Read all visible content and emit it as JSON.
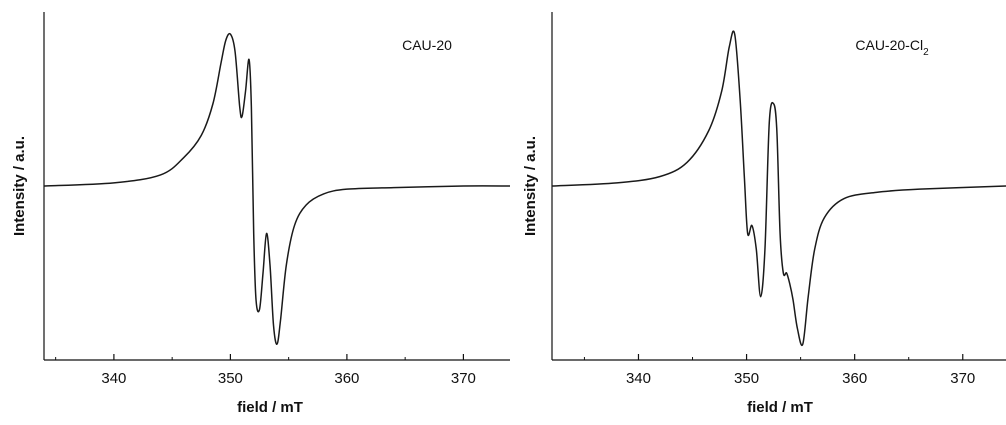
{
  "chart_data": [
    {
      "type": "line",
      "title": "",
      "panel_label": "CAU-20",
      "panel_label_sub": "",
      "xlabel": "field / mT",
      "ylabel": "Intensity / a.u.",
      "xlim": [
        334,
        374
      ],
      "ylim": [
        -1.1,
        1.1
      ],
      "x_ticks": [
        340,
        350,
        360,
        370
      ],
      "y_ticks_labeled": false,
      "grid": false,
      "legend": "none",
      "line_color": "#1a1a1a",
      "series": [
        {
          "x": [
            334,
            340,
            344,
            346,
            347.5,
            348.5,
            349.2,
            349.6,
            350.0,
            350.4,
            350.8,
            351.0,
            351.3,
            351.6,
            351.8,
            352.0,
            352.2,
            352.5,
            352.8,
            353.1,
            353.4,
            353.7,
            354.0,
            354.3,
            354.8,
            355.5,
            356.5,
            358,
            360,
            364,
            370,
            374
          ],
          "y": [
            0.0,
            0.02,
            0.07,
            0.18,
            0.32,
            0.52,
            0.78,
            0.92,
            0.96,
            0.85,
            0.5,
            0.44,
            0.6,
            0.8,
            0.5,
            -0.3,
            -0.72,
            -0.78,
            -0.55,
            -0.3,
            -0.5,
            -0.88,
            -1.0,
            -0.85,
            -0.5,
            -0.25,
            -0.12,
            -0.05,
            -0.02,
            -0.01,
            0.0,
            0.0
          ]
        }
      ]
    },
    {
      "type": "line",
      "title": "",
      "panel_label": "CAU-20-Cl",
      "panel_label_sub": "2",
      "xlabel": "field / mT",
      "ylabel": "Intensity / a.u.",
      "xlim": [
        332,
        374
      ],
      "ylim": [
        -1.1,
        1.1
      ],
      "x_ticks": [
        340,
        350,
        360,
        370
      ],
      "y_ticks_labeled": false,
      "grid": false,
      "legend": "none",
      "line_color": "#1a1a1a",
      "series": [
        {
          "x": [
            332,
            338,
            342,
            344.5,
            346.5,
            347.7,
            348.4,
            348.9,
            349.4,
            349.8,
            350.1,
            350.5,
            350.9,
            351.3,
            351.7,
            352.1,
            352.5,
            352.8,
            353.1,
            353.4,
            353.7,
            354.0,
            354.3,
            354.7,
            355.2,
            355.7,
            356.3,
            357.2,
            359,
            362,
            366,
            374
          ],
          "y": [
            0.0,
            0.02,
            0.06,
            0.15,
            0.35,
            0.6,
            0.88,
            0.96,
            0.55,
            0.05,
            -0.3,
            -0.25,
            -0.4,
            -0.7,
            -0.4,
            0.4,
            0.52,
            0.35,
            -0.3,
            -0.55,
            -0.55,
            -0.62,
            -0.72,
            -0.9,
            -1.0,
            -0.7,
            -0.4,
            -0.2,
            -0.08,
            -0.04,
            -0.02,
            0.0
          ]
        }
      ]
    }
  ]
}
